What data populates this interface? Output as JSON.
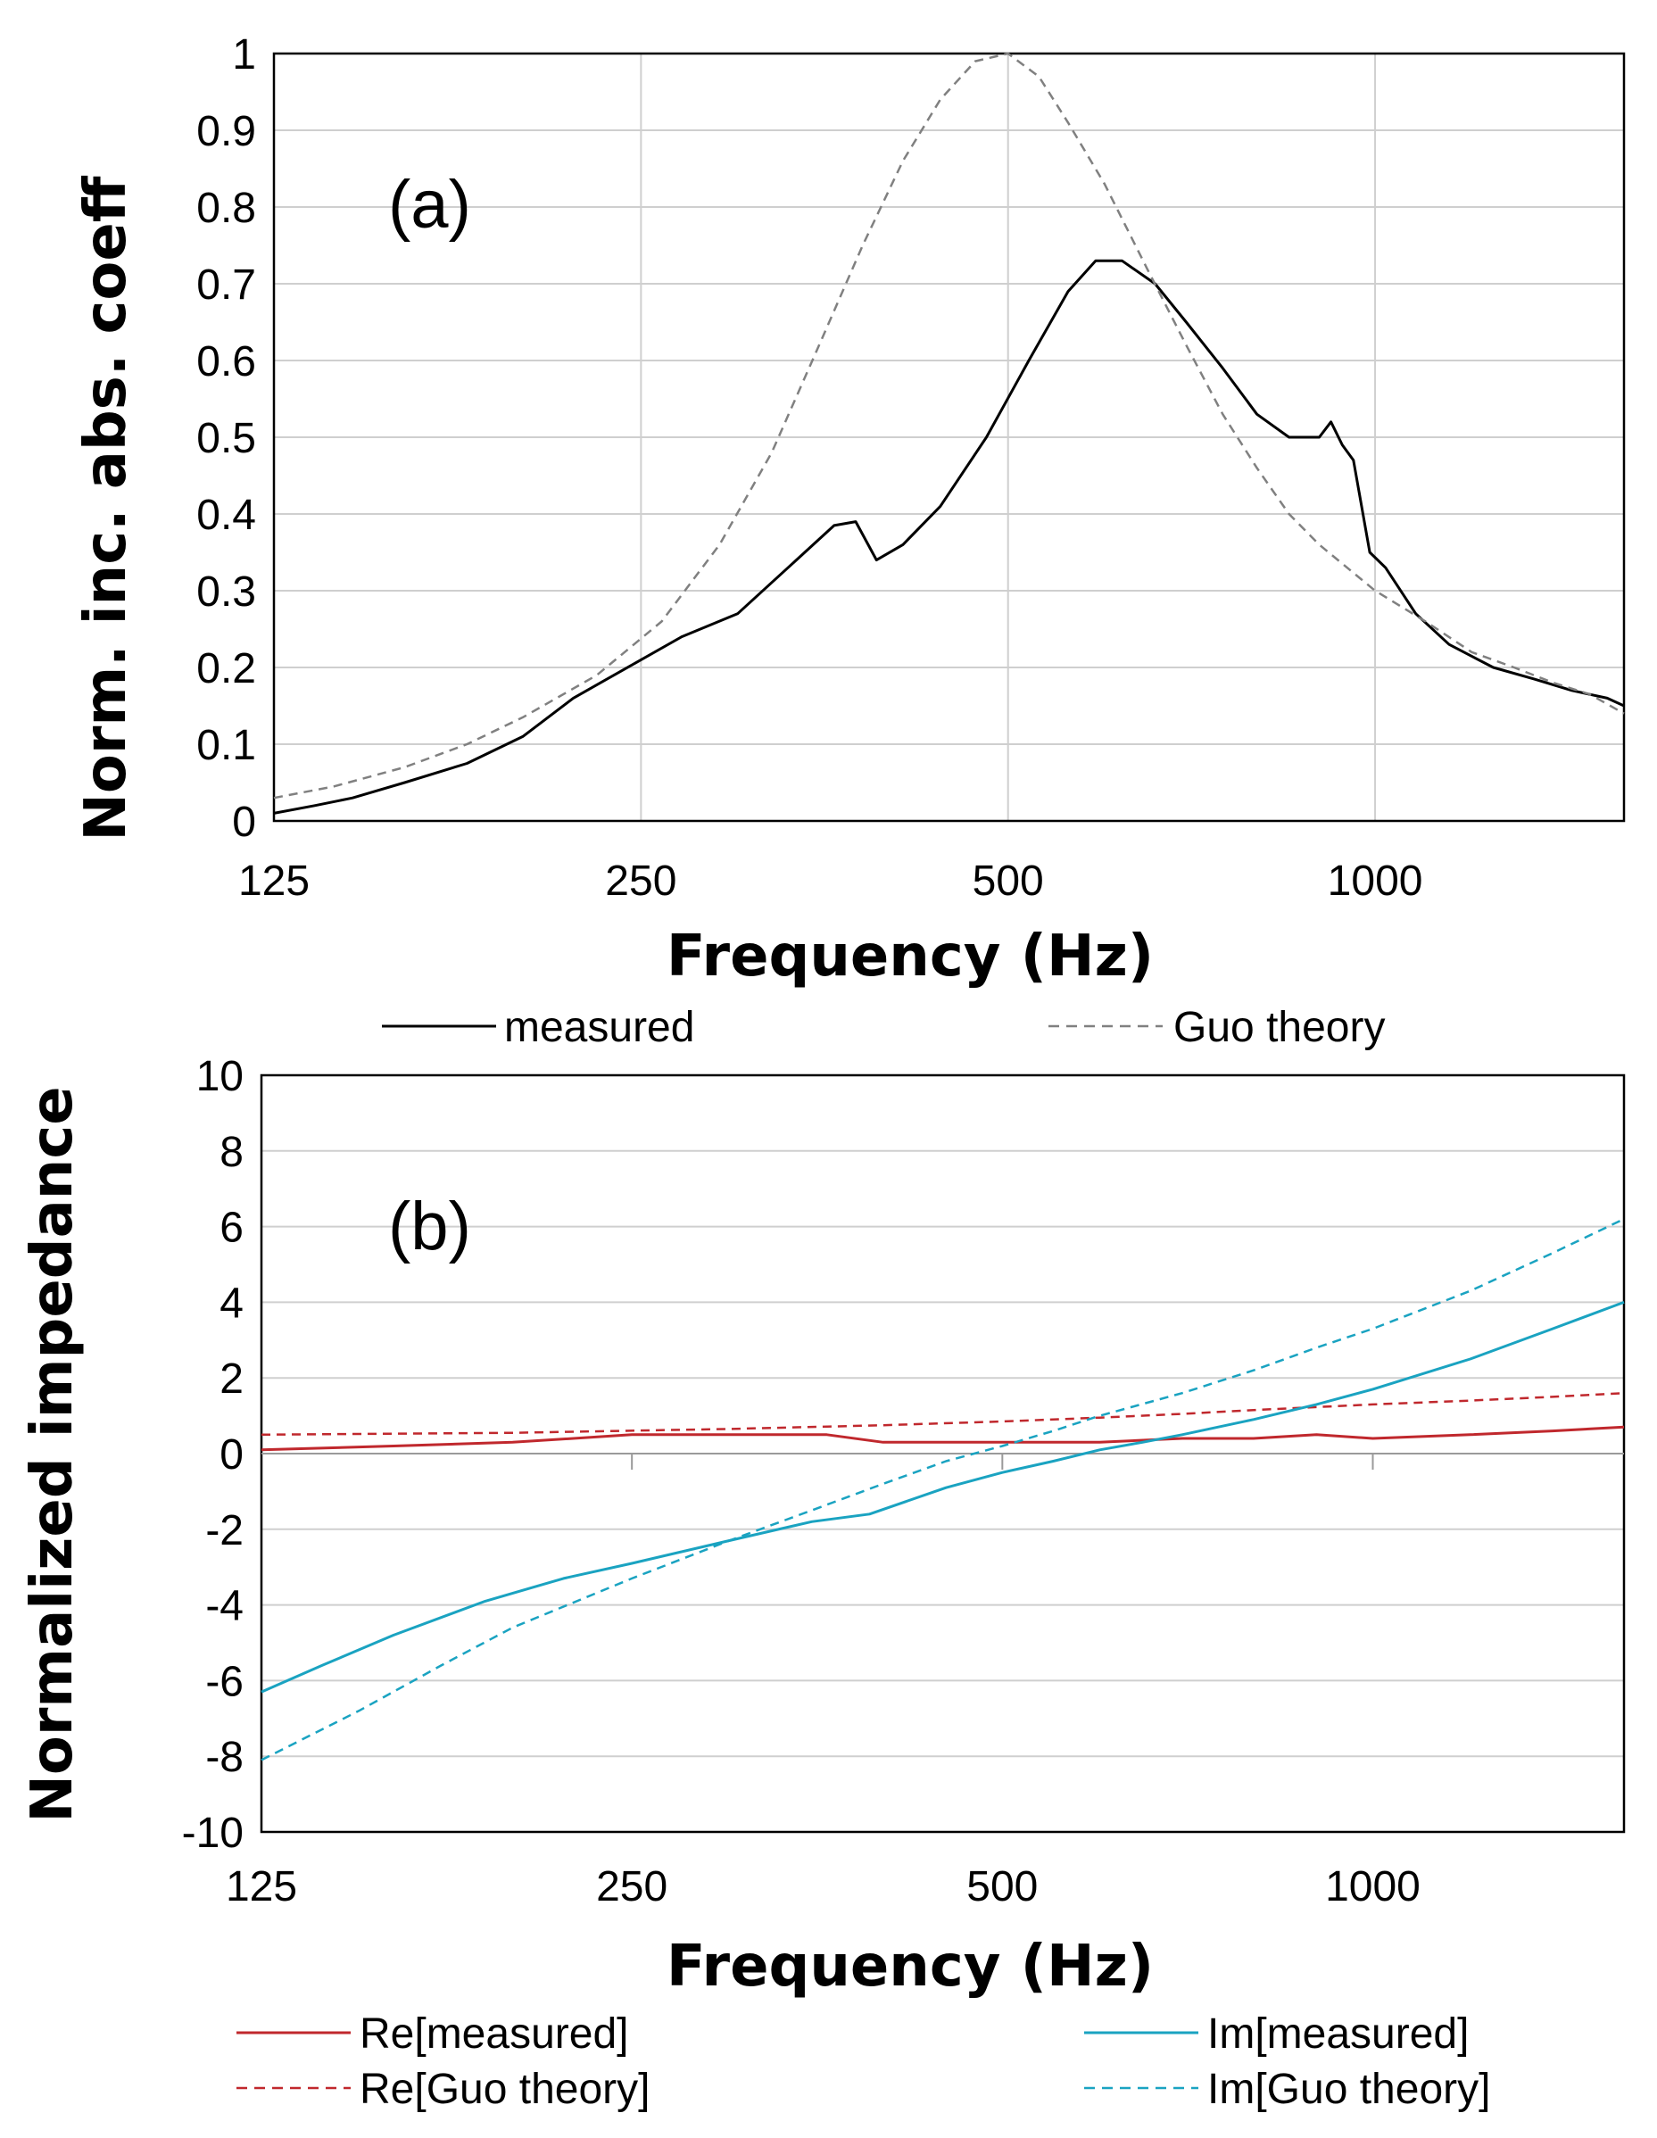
{
  "chart_data": [
    {
      "type": "line",
      "panel_label": "(a)",
      "xlabel": "Frequency (Hz)",
      "ylabel": "Norm. inc. abs. coeff",
      "xscale": "log2",
      "xlim": [
        125,
        1600
      ],
      "ylim": [
        0,
        1
      ],
      "grid": true,
      "legend_position": "bottom",
      "x_ticks": [
        "125",
        "250",
        "500",
        "1000"
      ],
      "y_ticks": [
        "0",
        "0.1",
        "0.2",
        "0.3",
        "0.4",
        "0.5",
        "0.6",
        "0.7",
        "0.8",
        "0.9",
        "1"
      ],
      "series": [
        {
          "name": "measured",
          "style": "solid",
          "color": "#000000",
          "x": [
            125,
            135,
            145,
            160,
            180,
            200,
            220,
            250,
            270,
            300,
            330,
            360,
            375,
            390,
            410,
            440,
            480,
            520,
            560,
            590,
            620,
            660,
            700,
            750,
            800,
            850,
            900,
            920,
            940,
            960,
            990,
            1020,
            1080,
            1150,
            1250,
            1350,
            1450,
            1550,
            1600
          ],
          "y": [
            0.01,
            0.02,
            0.03,
            0.05,
            0.075,
            0.11,
            0.16,
            0.21,
            0.24,
            0.27,
            0.33,
            0.385,
            0.39,
            0.34,
            0.36,
            0.41,
            0.5,
            0.6,
            0.69,
            0.73,
            0.73,
            0.7,
            0.65,
            0.59,
            0.53,
            0.5,
            0.5,
            0.52,
            0.49,
            0.47,
            0.35,
            0.33,
            0.27,
            0.23,
            0.2,
            0.185,
            0.17,
            0.16,
            0.15
          ]
        },
        {
          "name": "Guo theory",
          "style": "dashed",
          "color": "#808080",
          "x": [
            125,
            140,
            160,
            180,
            200,
            230,
            260,
            290,
            320,
            350,
            380,
            410,
            440,
            470,
            500,
            530,
            560,
            600,
            650,
            700,
            750,
            800,
            850,
            900,
            1000,
            1100,
            1200,
            1300,
            1400,
            1500,
            1600
          ],
          "y": [
            0.03,
            0.045,
            0.07,
            0.1,
            0.135,
            0.19,
            0.26,
            0.36,
            0.48,
            0.62,
            0.75,
            0.86,
            0.94,
            0.99,
            1.0,
            0.97,
            0.91,
            0.83,
            0.72,
            0.62,
            0.53,
            0.46,
            0.4,
            0.36,
            0.3,
            0.26,
            0.22,
            0.2,
            0.18,
            0.165,
            0.14
          ]
        }
      ]
    },
    {
      "type": "line",
      "panel_label": "(b)",
      "xlabel": "Frequency (Hz)",
      "ylabel": "Normalized impedance",
      "xscale": "log2",
      "xlim": [
        125,
        1600
      ],
      "ylim": [
        -10,
        10
      ],
      "grid": true,
      "legend_position": "bottom",
      "x_ticks": [
        "125",
        "250",
        "500",
        "1000"
      ],
      "y_ticks": [
        "-10",
        "-8",
        "-6",
        "-4",
        "-2",
        "0",
        "2",
        "4",
        "6",
        "8",
        "10"
      ],
      "series": [
        {
          "name": "Re[measured]",
          "style": "solid",
          "color": "#c0282d",
          "x": [
            125,
            160,
            200,
            250,
            300,
            360,
            400,
            500,
            600,
            700,
            800,
            900,
            1000,
            1200,
            1400,
            1600
          ],
          "y": [
            0.1,
            0.2,
            0.3,
            0.5,
            0.5,
            0.5,
            0.3,
            0.3,
            0.3,
            0.4,
            0.4,
            0.5,
            0.4,
            0.5,
            0.6,
            0.7
          ]
        },
        {
          "name": "Re[Guo theory]",
          "style": "dashed",
          "color": "#c0282d",
          "x": [
            125,
            200,
            300,
            400,
            500,
            600,
            700,
            800,
            1000,
            1200,
            1400,
            1600
          ],
          "y": [
            0.5,
            0.55,
            0.65,
            0.75,
            0.85,
            0.95,
            1.05,
            1.15,
            1.3,
            1.4,
            1.5,
            1.6
          ]
        },
        {
          "name": "Im[measured]",
          "style": "solid",
          "color": "#1aa3c1",
          "x": [
            125,
            140,
            160,
            190,
            220,
            250,
            300,
            350,
            390,
            450,
            500,
            550,
            600,
            650,
            700,
            800,
            900,
            1000,
            1200,
            1400,
            1600
          ],
          "y": [
            -6.3,
            -5.6,
            -4.8,
            -3.9,
            -3.3,
            -2.9,
            -2.3,
            -1.8,
            -1.6,
            -0.9,
            -0.5,
            -0.2,
            0.1,
            0.3,
            0.5,
            0.9,
            1.3,
            1.7,
            2.5,
            3.3,
            4.0
          ]
        },
        {
          "name": "Im[Guo theory]",
          "style": "dashed",
          "color": "#1aa3c1",
          "x": [
            125,
            150,
            175,
            200,
            250,
            300,
            350,
            400,
            450,
            500,
            550,
            600,
            700,
            800,
            900,
            1000,
            1200,
            1400,
            1600
          ],
          "y": [
            -8.1,
            -6.8,
            -5.6,
            -4.6,
            -3.3,
            -2.3,
            -1.5,
            -0.8,
            -0.2,
            0.2,
            0.6,
            1.0,
            1.6,
            2.2,
            2.8,
            3.3,
            4.3,
            5.3,
            6.2
          ]
        }
      ]
    }
  ]
}
